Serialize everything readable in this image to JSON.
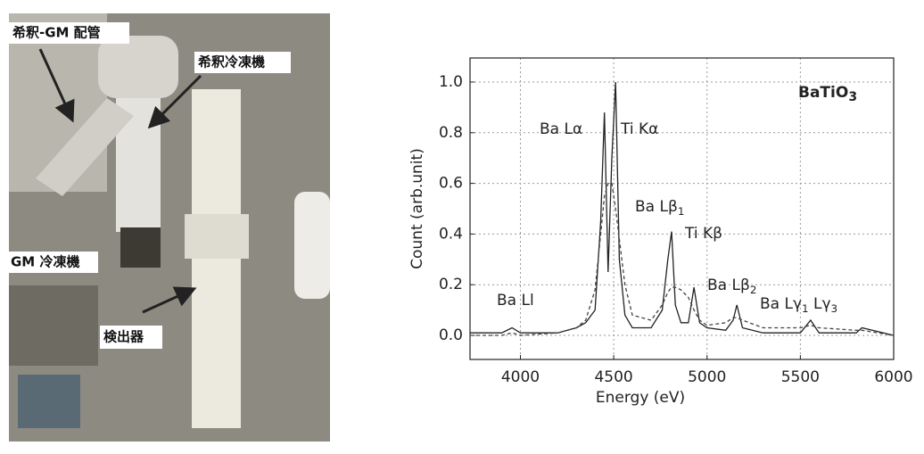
{
  "photo": {
    "labels": [
      "希釈-GM 配管",
      "希釈冷凍機",
      "GM 冷凍機",
      "検出器"
    ]
  },
  "chart_data": {
    "type": "line",
    "x_label": "Energy (eV)",
    "y_label": "Count (arb.unit)",
    "xlim": [
      3730,
      6000
    ],
    "ylim": [
      -0.095,
      1.095
    ],
    "xticks": [
      4000,
      4500,
      5000,
      5500,
      6000
    ],
    "yticks": [
      {
        "value": 0,
        "label": "0.0"
      },
      0.2,
      0.4,
      0.6,
      0.8,
      {
        "value": 1,
        "label": "1.0"
      }
    ],
    "grid": true,
    "x": [
      3730,
      3900,
      3955,
      4000,
      4200,
      4300,
      4350,
      4400,
      4430,
      4450,
      4470,
      4490,
      4510,
      4530,
      4560,
      4600,
      4700,
      4760,
      4790,
      4810,
      4830,
      4860,
      4900,
      4930,
      4960,
      5000,
      5100,
      5140,
      5160,
      5190,
      5300,
      5500,
      5555,
      5600,
      5800,
      5830,
      6000
    ],
    "series": [
      {
        "color": "#222222",
        "dash": false,
        "values": [
          0.01,
          0.01,
          0.03,
          0.01,
          0.01,
          0.03,
          0.05,
          0.1,
          0.45,
          0.88,
          0.25,
          0.7,
          1.0,
          0.3,
          0.08,
          0.03,
          0.03,
          0.1,
          0.3,
          0.41,
          0.12,
          0.05,
          0.05,
          0.19,
          0.05,
          0.03,
          0.02,
          0.06,
          0.12,
          0.03,
          0.01,
          0.01,
          0.06,
          0.01,
          0.01,
          0.03,
          0.0
        ]
      },
      {
        "color": "#444444",
        "dash": true,
        "values": [
          0.0,
          0.0,
          0.01,
          0.0,
          0.01,
          0.03,
          0.06,
          0.18,
          0.4,
          0.55,
          0.6,
          0.6,
          0.5,
          0.38,
          0.2,
          0.08,
          0.06,
          0.12,
          0.17,
          0.19,
          0.19,
          0.18,
          0.15,
          0.1,
          0.06,
          0.04,
          0.05,
          0.07,
          0.07,
          0.06,
          0.03,
          0.03,
          0.04,
          0.03,
          0.02,
          0.02,
          0.0
        ]
      }
    ],
    "annotations": [
      [
        {
          "text": "Ba Ll"
        }
      ],
      [
        {
          "text": "Ba Lα"
        }
      ],
      [
        {
          "text": "Ti Kα"
        }
      ],
      [
        {
          "text": "Ba Lβ"
        },
        {
          "sub": "1"
        }
      ],
      [
        {
          "text": "Ti Kβ"
        }
      ],
      [
        {
          "text": "Ba Lβ"
        },
        {
          "sub": "2"
        }
      ],
      [
        {
          "text": "Ba Lγ"
        },
        {
          "sub": "1"
        },
        {
          "text": " Lγ"
        },
        {
          "sub": "3"
        }
      ],
      [
        {
          "text": "BaTiO"
        },
        {
          "sub": "3"
        }
      ]
    ]
  }
}
